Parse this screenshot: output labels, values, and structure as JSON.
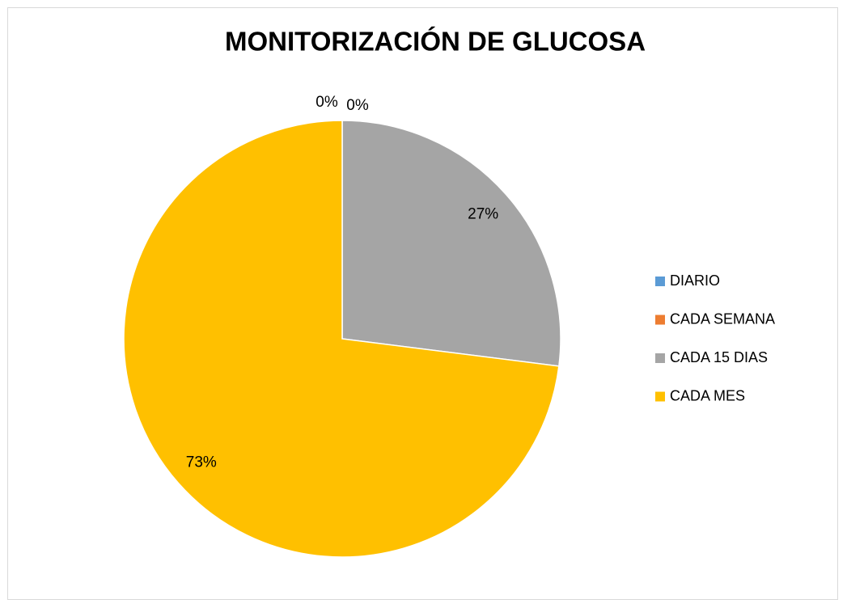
{
  "chart_data": {
    "type": "pie",
    "title": "MONITORIZACIÓN DE GLUCOSA",
    "categories": [
      "DIARIO",
      "CADA SEMANA",
      "CADA 15 DIAS",
      "CADA MES"
    ],
    "values": [
      0,
      0,
      27,
      73
    ],
    "value_labels": [
      "0%",
      "0%",
      "27%",
      "73%"
    ],
    "colors": [
      "#5b9bd5",
      "#ed7d31",
      "#a5a5a5",
      "#ffc000"
    ],
    "legend": "right"
  }
}
